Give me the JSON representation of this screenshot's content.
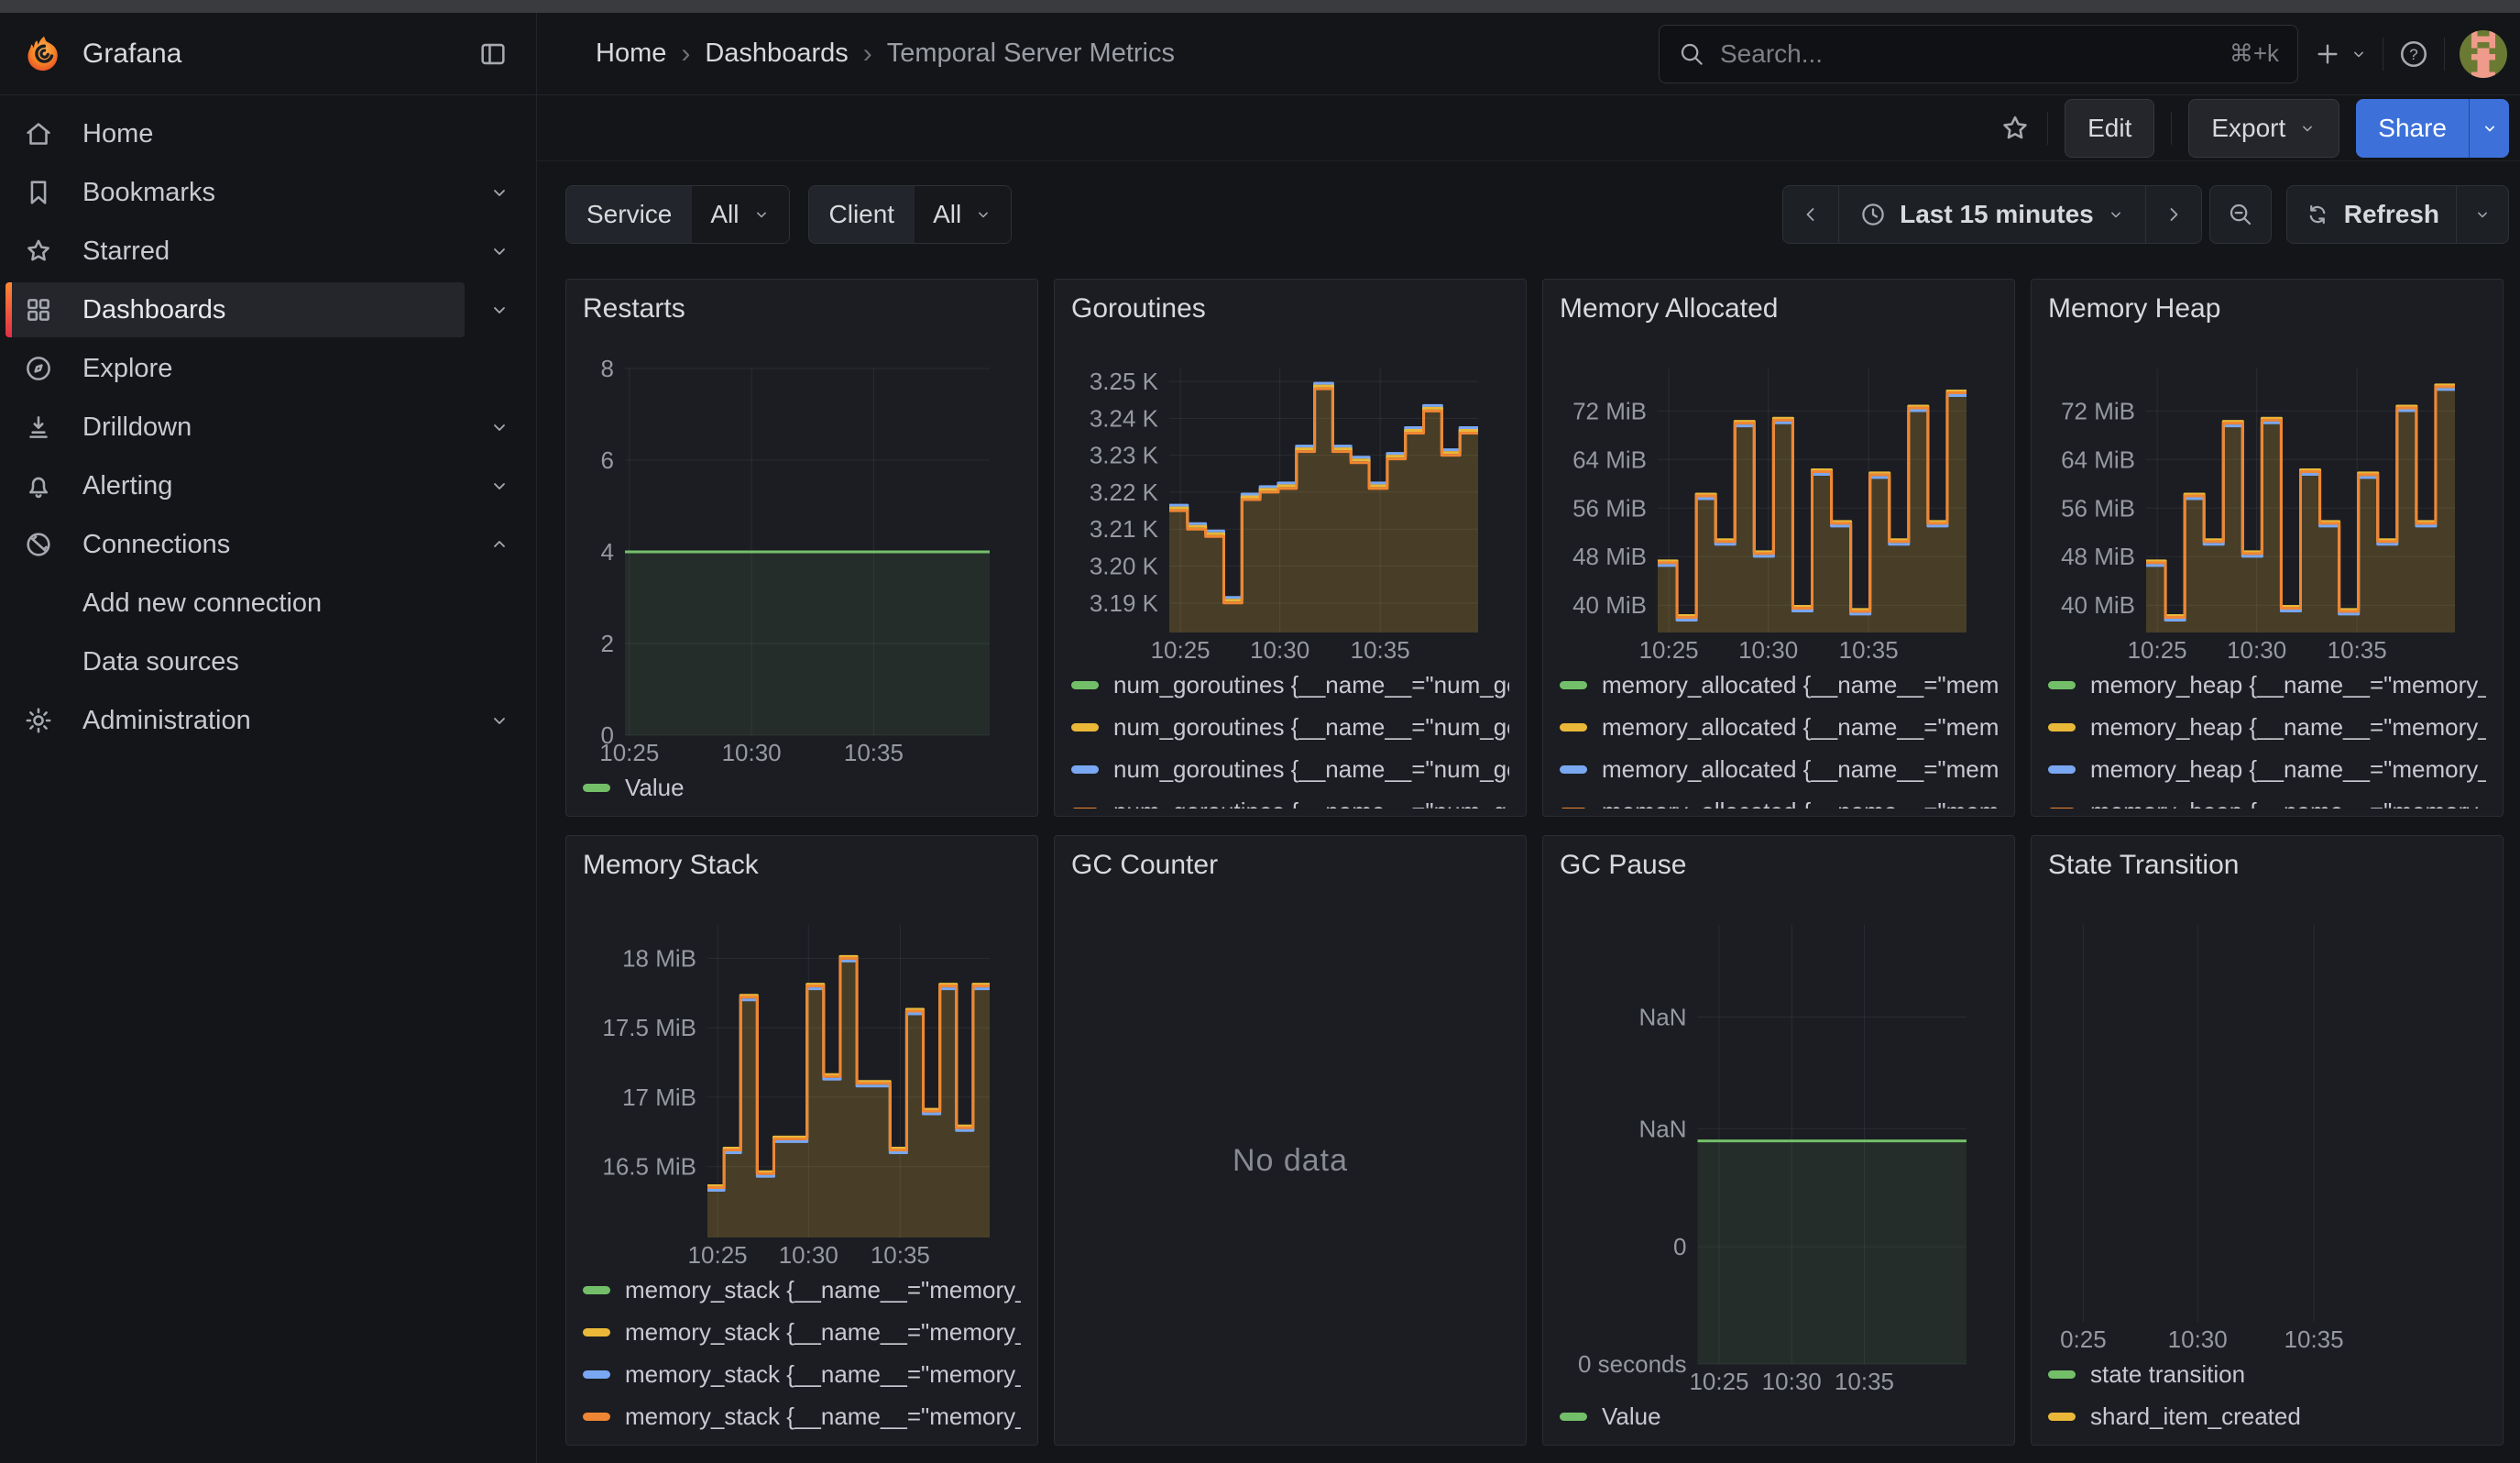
{
  "header": {
    "brand": "Grafana",
    "breadcrumb": {
      "items": [
        "Home",
        "Dashboards",
        "Temporal Server Metrics"
      ],
      "separator": "›"
    },
    "search": {
      "placeholder": "Search...",
      "shortcut": "⌘+k"
    }
  },
  "sidebar": {
    "items": [
      {
        "label": "Home",
        "icon": "home-icon"
      },
      {
        "label": "Bookmarks",
        "icon": "bookmark-icon",
        "chevron": "down"
      },
      {
        "label": "Starred",
        "icon": "star-icon",
        "chevron": "down"
      },
      {
        "label": "Dashboards",
        "icon": "dashboards-grid-icon",
        "chevron": "down",
        "selected": true
      },
      {
        "label": "Explore",
        "icon": "compass-icon"
      },
      {
        "label": "Drilldown",
        "icon": "drilldown-icon",
        "chevron": "down"
      },
      {
        "label": "Alerting",
        "icon": "bell-icon",
        "chevron": "down"
      },
      {
        "label": "Connections",
        "icon": "connections-icon",
        "chevron": "up"
      },
      {
        "label": "Add new connection",
        "sub": true
      },
      {
        "label": "Data sources",
        "sub": true
      },
      {
        "label": "Administration",
        "icon": "gear-icon",
        "chevron": "down"
      }
    ]
  },
  "toolbar": {
    "edit_label": "Edit",
    "export_label": "Export",
    "share_label": "Share"
  },
  "controls": {
    "service_label": "Service",
    "service_value": "All",
    "client_label": "Client",
    "client_value": "All",
    "time_range": "Last 15 minutes",
    "refresh_label": "Refresh"
  },
  "colors": {
    "green": "#73BF69",
    "yellow": "#EAB839",
    "blue": "#79A7F2",
    "orange": "#EF8633",
    "accent_blue": "#3D71D9",
    "selected_bar_top": "#FF8833",
    "selected_bar_bottom": "#E02F44"
  },
  "panels": [
    {
      "title": "Restarts",
      "legend": [
        {
          "color": "#73BF69",
          "label": "Value"
        }
      ],
      "chart": {
        "type": "area",
        "values": [
          4,
          4,
          4,
          4
        ],
        "ylim": [
          0,
          8
        ],
        "yticks": [
          {
            "label": "8",
            "v": 8
          },
          {
            "label": "6",
            "v": 6
          },
          {
            "label": "4",
            "v": 4
          },
          {
            "label": "2",
            "v": 2
          },
          {
            "label": "0",
            "v": 0
          }
        ],
        "xticks": [
          {
            "label": "10:25",
            "f": 0.012
          },
          {
            "label": "10:30",
            "f": 0.347
          },
          {
            "label": "10:35",
            "f": 0.682
          }
        ],
        "line": "#73BF69",
        "fill": "rgba(115,191,105,0.10)"
      }
    },
    {
      "title": "Goroutines",
      "legend": [
        {
          "color": "#73BF69",
          "label": "num_goroutines {__name__=\"num_go"
        },
        {
          "color": "#EAB839",
          "label": "num_goroutines {__name__=\"num_go"
        },
        {
          "color": "#79A7F2",
          "label": "num_goroutines {__name__=\"num_go"
        },
        {
          "color": "#EF8633",
          "label": "num_goroutines {__name__=\"num_go"
        }
      ],
      "legend_clipped": true,
      "chart": {
        "type": "step-area",
        "values": [
          3.215,
          3.21,
          3.208,
          3.19,
          3.218,
          3.22,
          3.221,
          3.231,
          3.248,
          3.231,
          3.228,
          3.221,
          3.229,
          3.236,
          3.242,
          3.23,
          3.236
        ],
        "ylim": [
          3.182,
          3.2535
        ],
        "yticks": [
          {
            "label": "3.25 K",
            "v": 3.25
          },
          {
            "label": "3.24 K",
            "v": 3.24
          },
          {
            "label": "3.23 K",
            "v": 3.23
          },
          {
            "label": "3.22 K",
            "v": 3.22
          },
          {
            "label": "3.21 K",
            "v": 3.21
          },
          {
            "label": "3.20 K",
            "v": 3.2
          },
          {
            "label": "3.19 K",
            "v": 3.19
          }
        ],
        "xticks": [
          {
            "label": "10:25",
            "f": 0.036
          },
          {
            "label": "10:30",
            "f": 0.358
          },
          {
            "label": "10:35",
            "f": 0.683
          }
        ],
        "line": "#EF8633",
        "fill": "rgba(234,184,57,0.22)",
        "fringes": [
          {
            "color": "#79A7F2",
            "off": -6
          },
          {
            "color": "#EAB839",
            "off": -3
          }
        ]
      }
    },
    {
      "title": "Memory Allocated",
      "legend": [
        {
          "color": "#73BF69",
          "label": "memory_allocated {__name__=\"memo"
        },
        {
          "color": "#EAB839",
          "label": "memory_allocated {__name__=\"memo"
        },
        {
          "color": "#79A7F2",
          "label": "memory_allocated {__name__=\"memo"
        },
        {
          "color": "#EF8633",
          "label": "memory_allocated {__name__=\"memo"
        }
      ],
      "legend_clipped": true,
      "chart": {
        "type": "step-area",
        "values": [
          47,
          38,
          58,
          50.5,
          70,
          48.5,
          70.5,
          39.5,
          62,
          53.5,
          39,
          61.5,
          50.5,
          72.5,
          53.5,
          75
        ],
        "ylim": [
          35.5,
          79
        ],
        "yticks": [
          {
            "label": "72 MiB",
            "v": 72
          },
          {
            "label": "64 MiB",
            "v": 64
          },
          {
            "label": "56 MiB",
            "v": 56
          },
          {
            "label": "48 MiB",
            "v": 48
          },
          {
            "label": "40 MiB",
            "v": 40
          }
        ],
        "xticks": [
          {
            "label": "10:25",
            "f": 0.036
          },
          {
            "label": "10:30",
            "f": 0.358
          },
          {
            "label": "10:35",
            "f": 0.683
          }
        ],
        "line": "#EF8633",
        "fill": "rgba(234,184,57,0.22)",
        "fringes": [
          {
            "color": "#79A7F2",
            "off": 3
          },
          {
            "color": "#EAB839",
            "off": -2
          }
        ]
      }
    },
    {
      "title": "Memory Heap",
      "legend": [
        {
          "color": "#73BF69",
          "label": "memory_heap {__name__=\"memory_h"
        },
        {
          "color": "#EAB839",
          "label": "memory_heap {__name__=\"memory_h"
        },
        {
          "color": "#79A7F2",
          "label": "memory_heap {__name__=\"memory_h"
        },
        {
          "color": "#EF8633",
          "label": "memory_heap {__name__=\"memory_h"
        }
      ],
      "legend_clipped": true,
      "chart": {
        "type": "step-area",
        "values": [
          47,
          38,
          58,
          50.5,
          70,
          48.5,
          70.5,
          39.5,
          62,
          53.5,
          39,
          61.5,
          50.5,
          72.5,
          53.5,
          76
        ],
        "ylim": [
          35.5,
          79
        ],
        "yticks": [
          {
            "label": "72 MiB",
            "v": 72
          },
          {
            "label": "64 MiB",
            "v": 64
          },
          {
            "label": "56 MiB",
            "v": 56
          },
          {
            "label": "48 MiB",
            "v": 48
          },
          {
            "label": "40 MiB",
            "v": 40
          }
        ],
        "xticks": [
          {
            "label": "10:25",
            "f": 0.036
          },
          {
            "label": "10:30",
            "f": 0.358
          },
          {
            "label": "10:35",
            "f": 0.683
          }
        ],
        "line": "#EF8633",
        "fill": "rgba(234,184,57,0.22)",
        "fringes": [
          {
            "color": "#79A7F2",
            "off": 3
          },
          {
            "color": "#EAB839",
            "off": -2
          }
        ]
      }
    },
    {
      "title": "Memory Stack",
      "legend": [
        {
          "color": "#73BF69",
          "label": "memory_stack {__name__=\"memory_s"
        },
        {
          "color": "#EAB839",
          "label": "memory_stack {__name__=\"memory_s"
        },
        {
          "color": "#79A7F2",
          "label": "memory_stack {__name__=\"memory_s"
        },
        {
          "color": "#EF8633",
          "label": "memory_stack {__name__=\"memory_s"
        }
      ],
      "chart": {
        "type": "step-area",
        "values": [
          16.35,
          16.62,
          17.72,
          16.45,
          16.7,
          16.7,
          17.8,
          17.15,
          18.0,
          17.1,
          17.1,
          16.62,
          17.62,
          16.9,
          17.8,
          16.78,
          17.8
        ],
        "ylim": [
          15.99,
          18.24
        ],
        "yticks": [
          {
            "label": "18 MiB",
            "v": 18
          },
          {
            "label": "17.5 MiB",
            "v": 17.5
          },
          {
            "label": "17 MiB",
            "v": 17
          },
          {
            "label": "16.5 MiB",
            "v": 16.5
          }
        ],
        "xticks": [
          {
            "label": "10:25",
            "f": 0.036
          },
          {
            "label": "10:30",
            "f": 0.358
          },
          {
            "label": "10:35",
            "f": 0.683
          }
        ],
        "line": "#EF8633",
        "fill": "rgba(234,184,57,0.22)",
        "fringes": [
          {
            "color": "#79A7F2",
            "off": 3
          },
          {
            "color": "#EAB839",
            "off": -2
          }
        ]
      }
    },
    {
      "title": "GC Counter",
      "no_data": "No data"
    },
    {
      "title": "GC Pause",
      "legend": [
        {
          "color": "#73BF69",
          "label": "Value"
        }
      ],
      "chart": {
        "type": "area",
        "values": [
          0.508,
          0.508
        ],
        "ylim": [
          0,
          1
        ],
        "yticks": [
          {
            "label": "NaN",
            "v": 0.79
          },
          {
            "label": "NaN",
            "v": 0.536
          },
          {
            "label": "0",
            "v": 0.267
          },
          {
            "label": "0 seconds",
            "v": 0
          }
        ],
        "xticks": [
          {
            "label": "10:25",
            "f": 0.08
          },
          {
            "label": "10:30",
            "f": 0.35
          },
          {
            "label": "10:35",
            "f": 0.62
          }
        ],
        "line": "#73BF69",
        "fill": "rgba(115,191,105,0.10)"
      }
    },
    {
      "title": "State Transition",
      "legend": [
        {
          "color": "#73BF69",
          "label": "state transition"
        },
        {
          "color": "#EAB839",
          "label": "shard_item_created"
        }
      ],
      "chart": {
        "type": "empty",
        "xticks": [
          {
            "label": "0:25",
            "f": 0.025
          },
          {
            "label": "10:30",
            "f": 0.325
          },
          {
            "label": "10:35",
            "f": 0.63
          }
        ]
      }
    }
  ]
}
